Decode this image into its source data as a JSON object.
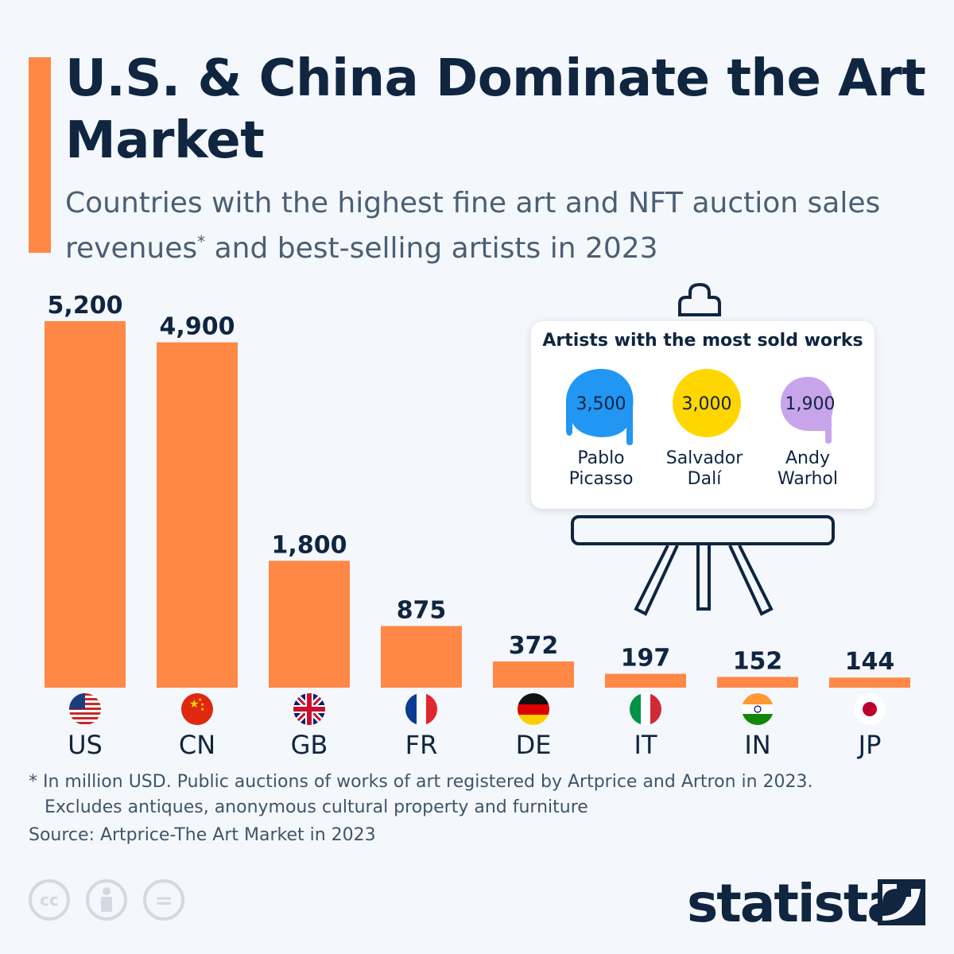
{
  "title": "U.S. & China Dominate the Art Market",
  "subtitle_part1": "Countries with the highest fine art and NFT auction sales revenues",
  "subtitle_star": "*",
  "subtitle_part2": " and best-selling artists in 2023",
  "colors": {
    "accent": "#ff8847",
    "navy": "#0f2540",
    "background": "#f4f7fb"
  },
  "chart_data": {
    "type": "bar",
    "categories": [
      "US",
      "CN",
      "GB",
      "FR",
      "DE",
      "IT",
      "IN",
      "JP"
    ],
    "values": [
      5200,
      4900,
      1800,
      875,
      372,
      197,
      152,
      144
    ],
    "value_labels": [
      "5,200",
      "4,900",
      "1,800",
      "875",
      "372",
      "197",
      "152",
      "144"
    ],
    "unit": "million USD",
    "ylim": [
      0,
      5200
    ],
    "grid": false,
    "flag_icons": [
      "us-flag-icon",
      "cn-flag-icon",
      "gb-flag-icon",
      "fr-flag-icon",
      "de-flag-icon",
      "it-flag-icon",
      "in-flag-icon",
      "jp-flag-icon"
    ]
  },
  "artists_panel": {
    "title": "Artists with the most sold works",
    "artists": [
      {
        "name_line1": "Pablo",
        "name_line2": "Picasso",
        "value": "3,500",
        "color": "#2196f3",
        "icon": "paint-drip-blue-icon"
      },
      {
        "name_line1": "Salvador",
        "name_line2": "Dalí",
        "value": "3,000",
        "color": "#ffd600",
        "icon": "paint-drip-yellow-icon"
      },
      {
        "name_line1": "Andy",
        "name_line2": "Warhol",
        "value": "1,900",
        "color": "#c8a5ea",
        "icon": "paint-drip-purple-icon"
      }
    ]
  },
  "footnote_line1": "* In million USD. Public auctions of works of art registered by Artprice and Artron in 2023.",
  "footnote_line2": "Excludes antiques, anonymous cultural property and furniture",
  "source": "Source: Artprice-The Art Market in 2023",
  "license_icons": [
    "cc-icon",
    "attribution-icon",
    "no-derivatives-icon"
  ],
  "license_labels": {
    "cc": "cc",
    "equals": "="
  },
  "brand": "statista"
}
